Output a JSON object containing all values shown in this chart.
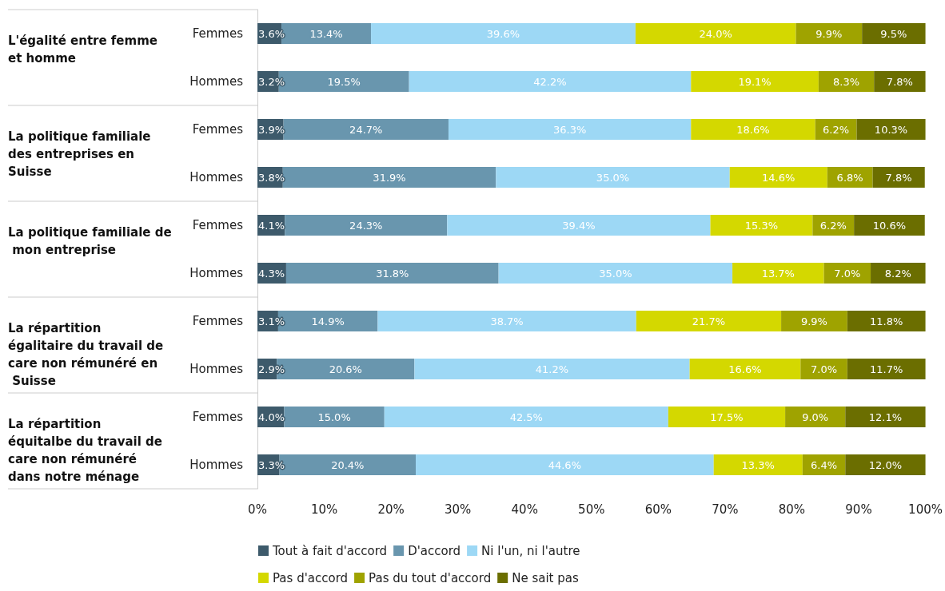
{
  "chart_data": {
    "type": "bar",
    "orientation": "horizontal",
    "stacked": true,
    "categories": [
      "Femmes",
      "Hommes",
      "Femmes",
      "Hommes",
      "Femmes",
      "Hommes",
      "Femmes",
      "Hommes",
      "Femmes",
      "Hommes"
    ],
    "annotations": [
      "L'égalité entre femme et homme",
      "La politique familiale des entreprises en Suisse",
      "La politique familiale de mon entreprise",
      "La répartition égalitaire du travail de care non rémunéré en Suisse",
      "La répartition équitalbe du travail de care non rémunéré dans notre ménage"
    ],
    "series": [
      {
        "name": "Tout à fait d'accord",
        "color": "#3d5a6b",
        "values": [
          3.6,
          3.2,
          3.9,
          3.8,
          4.1,
          4.3,
          3.1,
          2.9,
          4.0,
          3.3
        ],
        "value_labels": [
          "3.6%",
          "3.2%",
          "3.9%",
          "3.8%",
          "4.1%",
          "4.3%",
          "3.1%",
          "2.9%",
          "4.0%",
          "3.3%"
        ]
      },
      {
        "name": "D'accord",
        "color": "#6996ae",
        "values": [
          13.4,
          19.5,
          24.7,
          31.9,
          24.3,
          31.8,
          14.9,
          20.6,
          15.0,
          20.4
        ],
        "value_labels": [
          "13.4%",
          "19.5%",
          "24.7%",
          "31.9%",
          "24.3%",
          "31.8%",
          "14.9%",
          "20.6%",
          "15.0%",
          "20.4%"
        ]
      },
      {
        "name": "Ni l'un, ni l'autre",
        "color": "#9dd8f5",
        "values": [
          39.6,
          42.2,
          36.3,
          35.0,
          39.4,
          35.0,
          38.7,
          41.2,
          42.5,
          44.6
        ],
        "value_labels": [
          "39.6%",
          "42.2%",
          "36.3%",
          "35.0%",
          "39.4%",
          "35.0%",
          "38.7%",
          "41.2%",
          "42.5%",
          "44.6%"
        ]
      },
      {
        "name": "Pas d'accord",
        "color": "#d4d800",
        "values": [
          24.0,
          19.1,
          18.6,
          14.6,
          15.3,
          13.7,
          21.7,
          16.6,
          17.5,
          13.3
        ],
        "value_labels": [
          "24.0%",
          "19.1%",
          "18.6%",
          "14.6%",
          "15.3%",
          "13.7%",
          "21.7%",
          "16.6%",
          "17.5%",
          "13.3%"
        ]
      },
      {
        "name": "Pas du tout d'accord",
        "color": "#9fa300",
        "values": [
          9.9,
          8.3,
          6.2,
          6.8,
          6.2,
          7.0,
          9.9,
          7.0,
          9.0,
          6.4
        ],
        "value_labels": [
          "9.9%",
          "8.3%",
          "6.2%",
          "6.8%",
          "6.2%",
          "7.0%",
          "9.9%",
          "7.0%",
          "9.0%",
          "6.4%"
        ]
      },
      {
        "name": "Ne sait pas",
        "color": "#6b6e00",
        "values": [
          9.5,
          7.8,
          10.3,
          7.8,
          10.6,
          8.2,
          11.8,
          11.7,
          12.1,
          12.0
        ],
        "value_labels": [
          "9.5%",
          "7.8%",
          "10.3%",
          "7.8%",
          "10.6%",
          "8.2%",
          "11.8%",
          "11.7%",
          "12.1%",
          "12.0%"
        ]
      }
    ],
    "xlim": [
      0,
      100
    ],
    "xticks": [
      {
        "value": 0,
        "label": "0%"
      },
      {
        "value": 10,
        "label": "10%"
      },
      {
        "value": 20,
        "label": "20%"
      },
      {
        "value": 30,
        "label": "30%"
      },
      {
        "value": 40,
        "label": "40%"
      },
      {
        "value": 50,
        "label": "50%"
      },
      {
        "value": 60,
        "label": "60%"
      },
      {
        "value": 70,
        "label": "70%"
      },
      {
        "value": 80,
        "label": "80%"
      },
      {
        "value": 90,
        "label": "90%"
      },
      {
        "value": 100,
        "label": "100%"
      }
    ],
    "legend": "bottom",
    "grid": false
  }
}
